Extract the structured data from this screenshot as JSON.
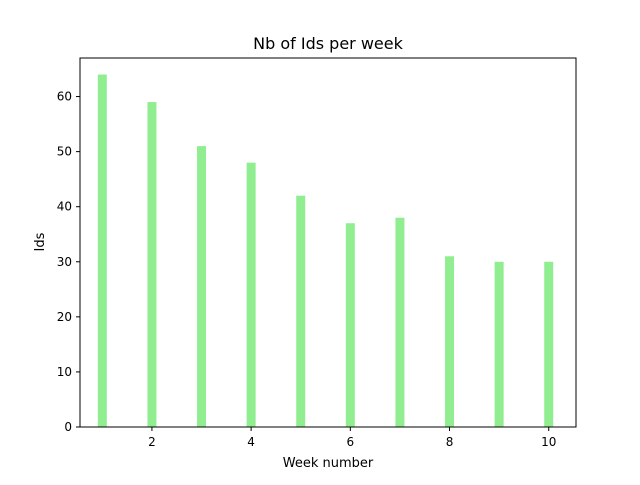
{
  "chart_data": {
    "type": "bar",
    "title": "Nb of Ids per week",
    "xlabel": "Week number",
    "ylabel": "Ids",
    "categories": [
      1,
      2,
      3,
      4,
      5,
      6,
      7,
      8,
      9,
      10
    ],
    "values": [
      64,
      59,
      51,
      48,
      42,
      37,
      38,
      31,
      30,
      30
    ],
    "xlim": [
      0.55,
      10.55
    ],
    "ylim": [
      0,
      67
    ],
    "xticks": [
      2,
      4,
      6,
      8,
      10
    ],
    "yticks": [
      0,
      10,
      20,
      30,
      40,
      50,
      60
    ],
    "grid": false,
    "bar_color": "#90ee90"
  }
}
